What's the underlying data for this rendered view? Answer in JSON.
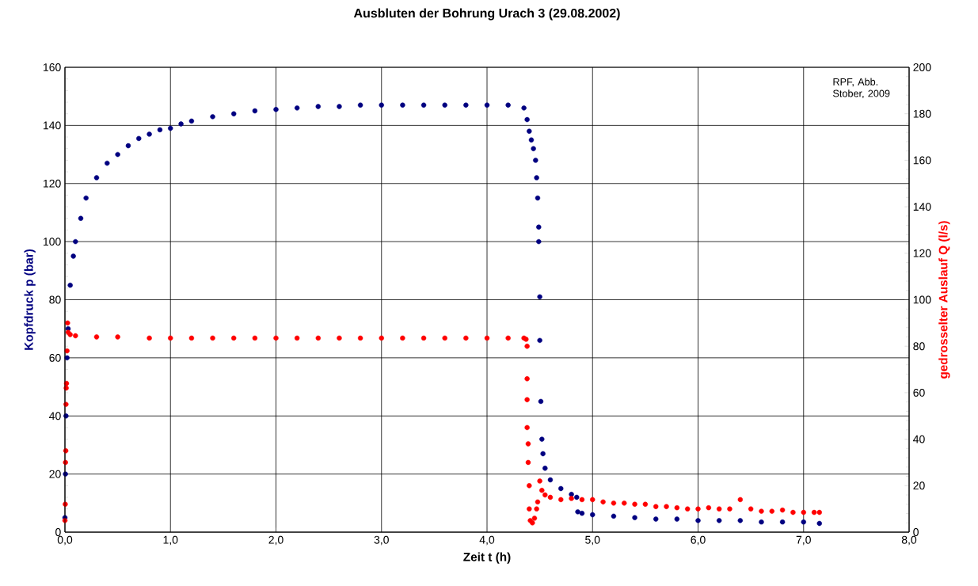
{
  "chart_data": {
    "type": "scatter",
    "title": "Ausbluten der Bohrung Urach 3 (29.08.2002)",
    "xlabel": "Zeit t (h)",
    "ylabel": "Kopfdruck p (bar)",
    "y2label": "gedrosselter Auslauf Q (l/s)",
    "annotations": [
      "RPF, Abb. Stober, 2009"
    ],
    "xlim": [
      0,
      8
    ],
    "xticks": [
      {
        "value": 0,
        "label": "0,0"
      },
      {
        "value": 1,
        "label": "1,0"
      },
      {
        "value": 2,
        "label": "2,0"
      },
      {
        "value": 3,
        "label": "3,0"
      },
      {
        "value": 4,
        "label": "4,0"
      },
      {
        "value": 5,
        "label": "5,0"
      },
      {
        "value": 6,
        "label": "6,0"
      },
      {
        "value": 7,
        "label": "7,0"
      },
      {
        "value": 8,
        "label": "8,0"
      }
    ],
    "ylim": [
      0,
      160
    ],
    "yticks": [
      0,
      20,
      40,
      60,
      80,
      100,
      120,
      140,
      160
    ],
    "y2lim": [
      0,
      200
    ],
    "y2ticks": [
      0,
      20,
      40,
      60,
      80,
      100,
      120,
      140,
      160,
      180,
      200
    ],
    "grid": true,
    "marker": "circle",
    "series": [
      {
        "color": "#000080",
        "x": [
          0,
          0.005,
          0.01,
          0.02,
          0.03,
          0.05,
          0.08,
          0.1,
          0.15,
          0.2,
          0.3,
          0.4,
          0.5,
          0.6,
          0.7,
          0.8,
          0.9,
          1.0,
          1.1,
          1.2,
          1.4,
          1.6,
          1.8,
          2.0,
          2.2,
          2.4,
          2.6,
          2.8,
          3.0,
          3.2,
          3.4,
          3.6,
          3.8,
          4.0,
          4.2,
          4.35,
          4.38,
          4.4,
          4.42,
          4.44,
          4.46,
          4.47,
          4.48,
          4.49,
          4.49,
          4.5,
          4.5,
          4.51,
          4.52,
          4.53,
          4.55,
          4.6,
          4.7,
          4.8,
          4.85,
          4.86,
          4.9,
          5.0,
          5.2,
          5.4,
          5.6,
          5.8,
          6.0,
          6.2,
          6.4,
          6.6,
          6.8,
          7.0,
          7.15
        ],
        "values": [
          5,
          20,
          40,
          60,
          70,
          85,
          95,
          100,
          108,
          115,
          122,
          127,
          130,
          133,
          135.5,
          137,
          138.5,
          139,
          140.5,
          141.5,
          143,
          144,
          145,
          145.5,
          146,
          146.5,
          146.5,
          147,
          147,
          147,
          147,
          147,
          147,
          147,
          147,
          146,
          142,
          138,
          135,
          132,
          128,
          122,
          115,
          105,
          100,
          81,
          66,
          45,
          32,
          27,
          22,
          18,
          15,
          13,
          12,
          7,
          6.5,
          6,
          5.5,
          5,
          4.5,
          4.5,
          4,
          4,
          4,
          3.5,
          3.5,
          3.5,
          3
        ]
      },
      {
        "color": "#ff0000",
        "axis": "y2",
        "x": [
          0,
          0.003,
          0.005,
          0.008,
          0.01,
          0.012,
          0.015,
          0.02,
          0.025,
          0.03,
          0.05,
          0.1,
          0.3,
          0.5,
          0.8,
          1.0,
          1.2,
          1.4,
          1.6,
          1.8,
          2.0,
          2.2,
          2.4,
          2.6,
          2.8,
          3.0,
          3.2,
          3.4,
          3.6,
          3.8,
          4.0,
          4.2,
          4.35,
          4.37,
          4.38,
          4.38,
          4.38,
          4.38,
          4.39,
          4.39,
          4.4,
          4.4,
          4.41,
          4.43,
          4.45,
          4.47,
          4.48,
          4.5,
          4.52,
          4.55,
          4.6,
          4.7,
          4.8,
          4.9,
          5.0,
          5.1,
          5.2,
          5.3,
          5.4,
          5.5,
          5.6,
          5.7,
          5.8,
          5.9,
          6.0,
          6.1,
          6.2,
          6.3,
          6.4,
          6.5,
          6.6,
          6.7,
          6.8,
          6.9,
          7.0,
          7.1,
          7.15
        ],
        "values": [
          5,
          12,
          30,
          35,
          55,
          62,
          64,
          78,
          90,
          86,
          85,
          84.5,
          84,
          84,
          83.5,
          83.5,
          83.5,
          83.5,
          83.5,
          83.5,
          83.5,
          83.5,
          83.5,
          83.5,
          83.5,
          83.5,
          83.5,
          83.5,
          83.5,
          83.5,
          83.5,
          83.5,
          83.5,
          83,
          80,
          66,
          57,
          45,
          38,
          30,
          20,
          10,
          5,
          4,
          6,
          10,
          13,
          22,
          18,
          16,
          15,
          14,
          14.5,
          14,
          14,
          13,
          12.5,
          12.5,
          12,
          12,
          11,
          11,
          10.5,
          10,
          10,
          10.5,
          10,
          10,
          14,
          10,
          9,
          9,
          9.5,
          8.5,
          8.5,
          8.5,
          8.5
        ]
      }
    ]
  }
}
